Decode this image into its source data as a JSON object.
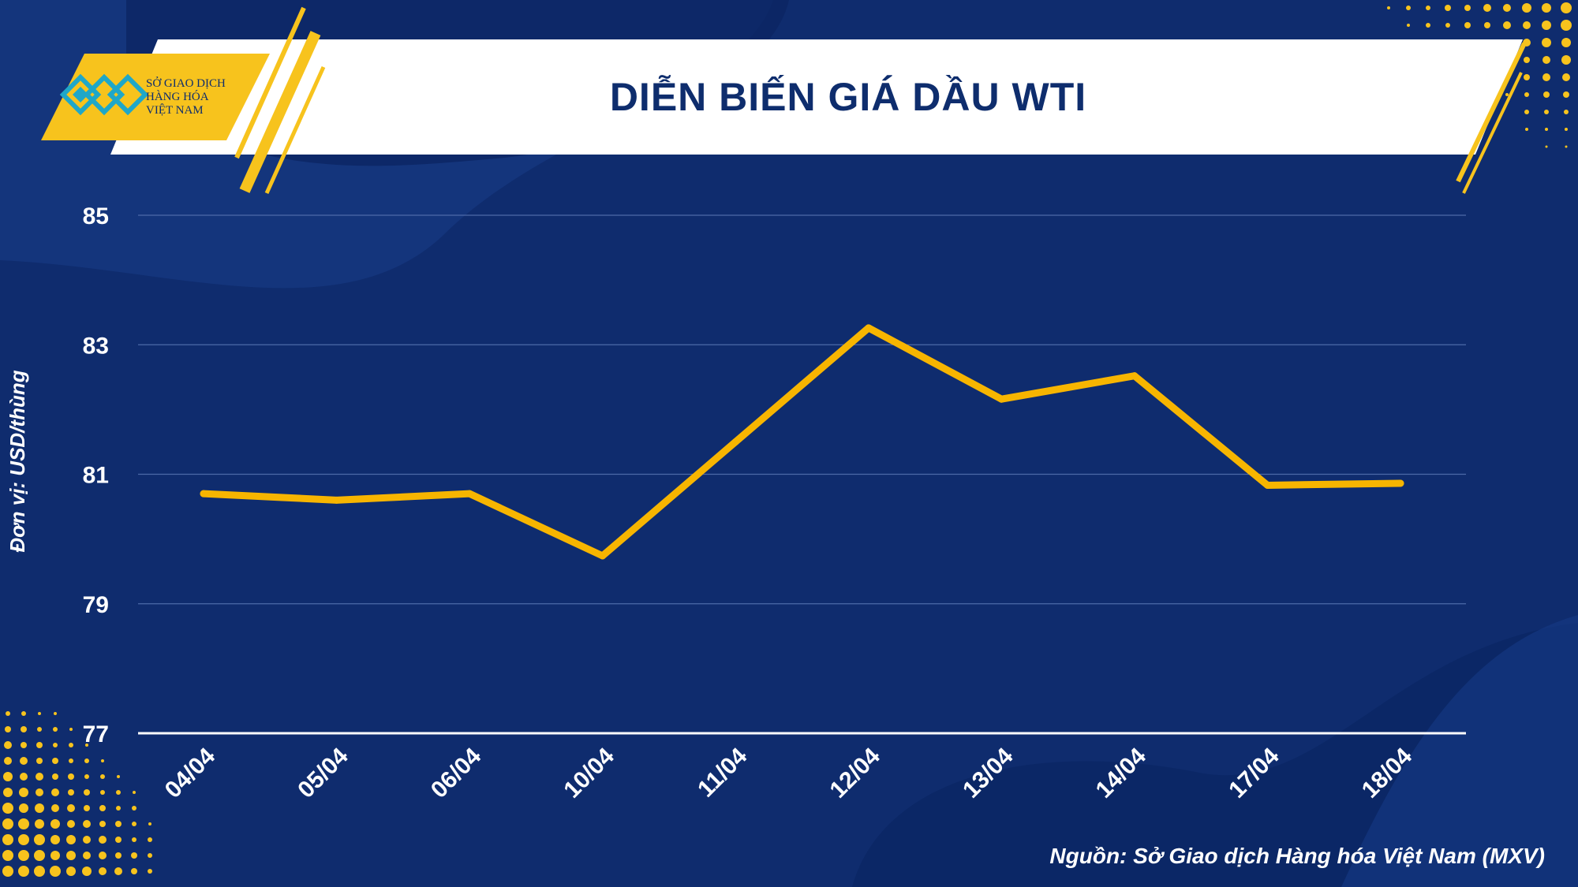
{
  "header": {
    "title": "DIỄN BIẾN GIÁ DẦU WTI",
    "logo_lines": [
      "SỞ GIAO DỊCH",
      "HÀNG HÓA",
      "VIỆT NAM"
    ]
  },
  "colors": {
    "background": "#0f2c6e",
    "accent": "#f7c31d",
    "line": "#f7b500",
    "text": "#ffffff"
  },
  "source": "Nguồn: Sở Giao dịch Hàng hóa Việt Nam (MXV)",
  "chart_data": {
    "type": "line",
    "title": "DIỄN BIẾN GIÁ DẦU WTI",
    "xlabel": "",
    "ylabel": "Đơn vị: USD/thùng",
    "categories": [
      "04/04",
      "05/04",
      "06/04",
      "10/04",
      "11/04",
      "12/04",
      "13/04",
      "14/04",
      "17/04",
      "18/04"
    ],
    "series": [
      {
        "values": [
          80.7,
          80.6,
          80.7,
          79.74,
          81.5,
          83.26,
          82.16,
          82.52,
          80.83,
          80.86
        ]
      }
    ],
    "ylim": [
      77,
      85
    ],
    "yticks": [
      77,
      79,
      81,
      83,
      85
    ],
    "grid": true,
    "legend": "none"
  }
}
